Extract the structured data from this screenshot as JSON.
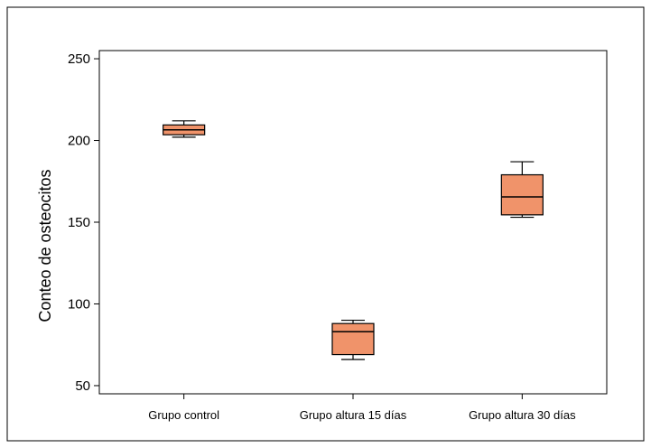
{
  "chart_data": {
    "type": "box",
    "ylabel": "Conteo de osteocitos",
    "xlabel": "",
    "ylim": [
      45,
      255
    ],
    "yticks": [
      50,
      100,
      150,
      200,
      250
    ],
    "grid": false,
    "box_color": "#f0936a",
    "categories": [
      "Grupo control",
      "Grupo altura 15 días",
      "Grupo altura 30 días"
    ],
    "boxes": [
      {
        "category": "Grupo control",
        "min": 202,
        "q1": 203.5,
        "median": 206.5,
        "q3": 209.5,
        "max": 212
      },
      {
        "category": "Grupo altura 15 días",
        "min": 66,
        "q1": 69,
        "median": 83,
        "q3": 88,
        "max": 90
      },
      {
        "category": "Grupo altura 30 días",
        "min": 153,
        "q1": 154.5,
        "median": 165.5,
        "q3": 179,
        "max": 187
      }
    ]
  }
}
